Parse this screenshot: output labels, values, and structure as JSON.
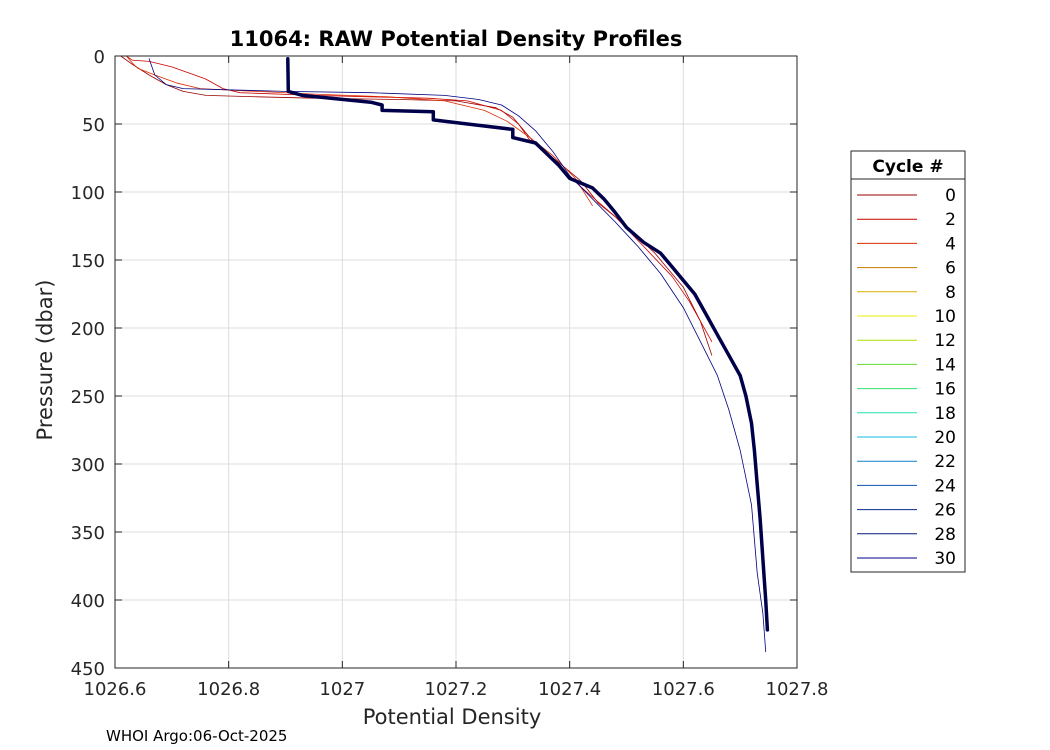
{
  "chart_data": {
    "type": "line",
    "title": "11064: RAW Potential Density Profiles",
    "xlabel": "Potential Density",
    "ylabel": "Pressure (dbar)",
    "xlim": [
      1026.6,
      1027.8
    ],
    "ylim": [
      0,
      450
    ],
    "y_reversed": true,
    "xticks": [
      "1026.6",
      "1026.8",
      "1027",
      "1027.2",
      "1027.4",
      "1027.6",
      "1027.8"
    ],
    "yticks": [
      "0",
      "50",
      "100",
      "150",
      "200",
      "250",
      "300",
      "350",
      "400",
      "450"
    ],
    "grid": true,
    "legend_title": "Cycle #",
    "legend_position": "right",
    "legend": [
      {
        "name": "0",
        "color": "#9a0000"
      },
      {
        "name": "2",
        "color": "#cc0000"
      },
      {
        "name": "4",
        "color": "#dd2a00"
      },
      {
        "name": "6",
        "color": "#c87800"
      },
      {
        "name": "8",
        "color": "#d8b000"
      },
      {
        "name": "10",
        "color": "#eded00"
      },
      {
        "name": "12",
        "color": "#a8e000"
      },
      {
        "name": "14",
        "color": "#60d830"
      },
      {
        "name": "16",
        "color": "#30e070"
      },
      {
        "name": "18",
        "color": "#20e0b0"
      },
      {
        "name": "20",
        "color": "#10b8e8"
      },
      {
        "name": "22",
        "color": "#1080c8"
      },
      {
        "name": "24",
        "color": "#1050b0"
      },
      {
        "name": "26",
        "color": "#0a2a90"
      },
      {
        "name": "28",
        "color": "#061a78"
      },
      {
        "name": "30",
        "color": "#00008b"
      }
    ],
    "series": [
      {
        "cycle": "0",
        "color": "#9a0000",
        "width": 0.8,
        "points": [
          [
            1026.61,
            0
          ],
          [
            1026.63,
            6
          ],
          [
            1026.66,
            14
          ],
          [
            1026.69,
            21
          ],
          [
            1026.72,
            26
          ],
          [
            1026.76,
            29
          ],
          [
            1026.85,
            30
          ],
          [
            1026.95,
            31
          ],
          [
            1027.1,
            32
          ],
          [
            1027.2,
            33
          ],
          [
            1027.27,
            38
          ],
          [
            1027.3,
            45
          ],
          [
            1027.32,
            55
          ],
          [
            1027.34,
            65
          ],
          [
            1027.38,
            78
          ],
          [
            1027.42,
            92
          ],
          [
            1027.45,
            108
          ],
          [
            1027.5,
            125
          ],
          [
            1027.55,
            145
          ],
          [
            1027.6,
            170
          ],
          [
            1027.63,
            195
          ],
          [
            1027.65,
            220
          ]
        ]
      },
      {
        "cycle": "2",
        "color": "#cc0000",
        "width": 0.8,
        "points": [
          [
            1026.62,
            0
          ],
          [
            1026.63,
            3
          ],
          [
            1026.66,
            4
          ],
          [
            1026.7,
            8
          ],
          [
            1026.74,
            14
          ],
          [
            1026.76,
            17
          ],
          [
            1026.79,
            24
          ],
          [
            1026.82,
            27
          ],
          [
            1026.95,
            29
          ],
          [
            1027.05,
            30
          ],
          [
            1027.15,
            31
          ],
          [
            1027.22,
            33
          ],
          [
            1027.28,
            40
          ],
          [
            1027.31,
            50
          ],
          [
            1027.33,
            62
          ],
          [
            1027.36,
            72
          ],
          [
            1027.39,
            85
          ],
          [
            1027.43,
            100
          ],
          [
            1027.48,
            118
          ],
          [
            1027.53,
            140
          ],
          [
            1027.58,
            162
          ],
          [
            1027.61,
            180
          ],
          [
            1027.63,
            195
          ],
          [
            1027.65,
            210
          ]
        ]
      },
      {
        "cycle": "4",
        "color": "#dd2a00",
        "width": 0.8,
        "points": [
          [
            1026.62,
            0
          ],
          [
            1026.63,
            5
          ],
          [
            1026.64,
            9
          ],
          [
            1026.67,
            14
          ],
          [
            1026.71,
            20
          ],
          [
            1026.75,
            24
          ],
          [
            1026.85,
            26
          ],
          [
            1026.95,
            28
          ],
          [
            1027.08,
            30
          ],
          [
            1027.18,
            33
          ],
          [
            1027.25,
            40
          ],
          [
            1027.29,
            48
          ],
          [
            1027.33,
            60
          ],
          [
            1027.37,
            73
          ],
          [
            1027.41,
            90
          ],
          [
            1027.44,
            110
          ]
        ]
      },
      {
        "cycle": "30",
        "color": "#000080",
        "width": 0.8,
        "points": [
          [
            1026.66,
            2
          ],
          [
            1026.67,
            14
          ],
          [
            1026.69,
            21
          ],
          [
            1026.72,
            24
          ],
          [
            1026.9,
            26
          ],
          [
            1027.05,
            27
          ],
          [
            1027.18,
            29
          ],
          [
            1027.24,
            32
          ],
          [
            1027.28,
            36
          ],
          [
            1027.31,
            44
          ],
          [
            1027.34,
            55
          ],
          [
            1027.37,
            70
          ],
          [
            1027.4,
            88
          ],
          [
            1027.44,
            105
          ],
          [
            1027.48,
            122
          ],
          [
            1027.52,
            140
          ],
          [
            1027.56,
            160
          ],
          [
            1027.6,
            185
          ],
          [
            1027.63,
            210
          ],
          [
            1027.66,
            235
          ],
          [
            1027.68,
            260
          ],
          [
            1027.7,
            290
          ],
          [
            1027.72,
            330
          ],
          [
            1027.73,
            380
          ],
          [
            1027.74,
            410
          ],
          [
            1027.745,
            438
          ]
        ]
      },
      {
        "cycle": "30",
        "color": "#00004a",
        "width": 3.5,
        "points": [
          [
            1026.904,
            2
          ],
          [
            1026.905,
            26
          ],
          [
            1026.93,
            29
          ],
          [
            1026.98,
            31
          ],
          [
            1027.05,
            34
          ],
          [
            1027.07,
            36
          ],
          [
            1027.07,
            40
          ],
          [
            1027.16,
            41
          ],
          [
            1027.16,
            47
          ],
          [
            1027.22,
            50
          ],
          [
            1027.3,
            54
          ],
          [
            1027.3,
            60
          ],
          [
            1027.34,
            64
          ],
          [
            1027.36,
            72
          ],
          [
            1027.38,
            80
          ],
          [
            1027.4,
            90
          ],
          [
            1027.44,
            97
          ],
          [
            1027.46,
            105
          ],
          [
            1027.48,
            115
          ],
          [
            1027.5,
            126
          ],
          [
            1027.53,
            137
          ],
          [
            1027.56,
            145
          ],
          [
            1027.58,
            155
          ],
          [
            1027.6,
            165
          ],
          [
            1027.62,
            175
          ],
          [
            1027.64,
            190
          ],
          [
            1027.66,
            205
          ],
          [
            1027.68,
            220
          ],
          [
            1027.7,
            235
          ],
          [
            1027.71,
            250
          ],
          [
            1027.72,
            270
          ],
          [
            1027.725,
            290
          ],
          [
            1027.73,
            315
          ],
          [
            1027.735,
            340
          ],
          [
            1027.74,
            370
          ],
          [
            1027.745,
            400
          ],
          [
            1027.748,
            422
          ]
        ]
      }
    ]
  },
  "footer_text": "WHOI Argo:06-Oct-2025"
}
